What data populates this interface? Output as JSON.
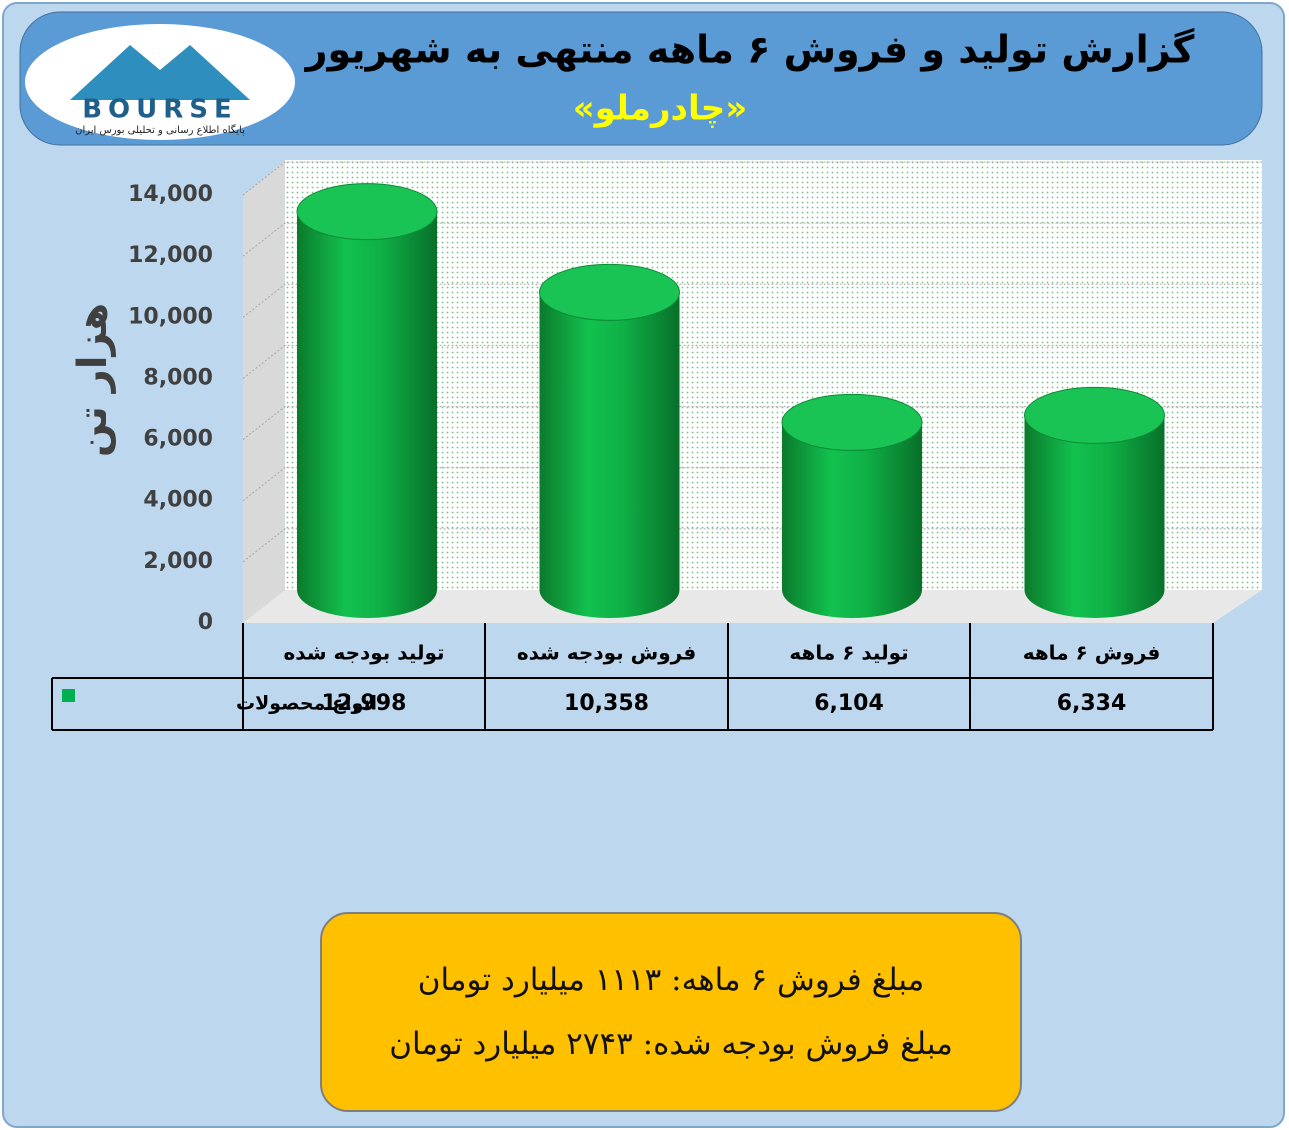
{
  "logo": {
    "brand": "BOURSE",
    "tagline": "پایگاه اطلاع رسانی و تحلیلی بورس ایران"
  },
  "chart_data": {
    "type": "bar",
    "title": "گزارش تولید و فروش ۶ ماهه منتهی به شهریور",
    "subtitle": "«چادرملو»",
    "ylabel": "هزار تن",
    "categories": [
      "تولید بودجه شده",
      "فروش بودجه شده",
      "تولید ۶ ماهه",
      "فروش ۶ ماهه"
    ],
    "series": [
      {
        "name": "انواع محصولات",
        "color": "#00b050",
        "values": [
          12998,
          10358,
          6104,
          6334
        ],
        "value_labels": [
          "12,998",
          "10,358",
          "6,104",
          "6,334"
        ]
      }
    ],
    "ylim": [
      0,
      14000
    ],
    "yticks": [
      0,
      {
        "value": 2000,
        "label": "2,000"
      },
      {
        "value": 4000,
        "label": "4,000"
      },
      {
        "value": 6000,
        "label": "6,000"
      },
      {
        "value": 8000,
        "label": "8,000"
      },
      {
        "value": 10000,
        "label": "10,000"
      },
      {
        "value": 12000,
        "label": "12,000"
      },
      {
        "value": 14000,
        "label": "14,000"
      }
    ],
    "grid": true
  },
  "note": [
    "مبلغ فروش ۶ ماهه: ۱۱۱۳ میلیارد تومان",
    "مبلغ فروش بودجه شده: ۲۷۴۳ میلیارد تومان"
  ]
}
